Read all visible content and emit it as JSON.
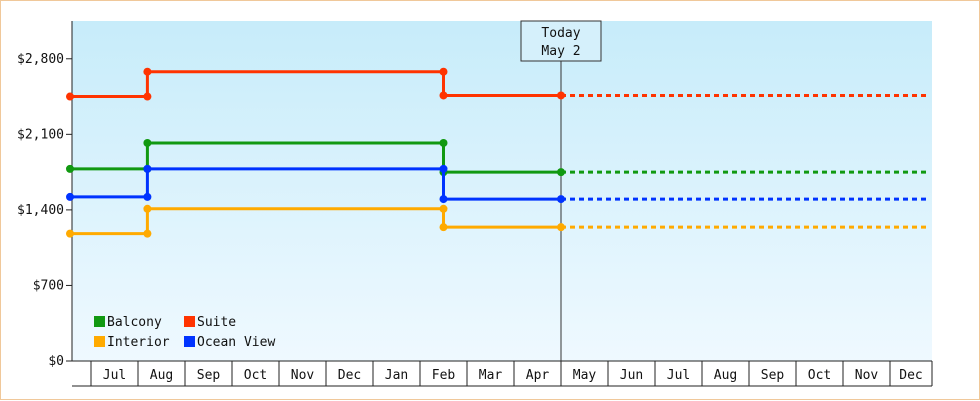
{
  "chart_data": {
    "type": "line",
    "step": true,
    "title": "",
    "xlabel": "",
    "ylabel": "",
    "ylim": [
      0,
      3150
    ],
    "yticks": [
      0,
      700,
      1400,
      2100,
      2800
    ],
    "ytick_labels": [
      "$0",
      "$700",
      "$1,400",
      "$2,100",
      "$2,800"
    ],
    "month_labels": [
      "Jul",
      "Aug",
      "Sep",
      "Oct",
      "Nov",
      "Dec",
      "Jan",
      "Feb",
      "Mar",
      "Apr",
      "May",
      "Jun",
      "Jul",
      "Aug",
      "Sep",
      "Oct",
      "Nov",
      "Dec"
    ],
    "x_unit": "month index (0 = start of Jul)",
    "today": {
      "x": 10.0,
      "label_line1": "Today",
      "label_line2": "May 2"
    },
    "grid": false,
    "legend_position": "bottom-left",
    "series": [
      {
        "name": "Balcony",
        "color": "#119911",
        "points": [
          [
            -0.5,
            1780
          ],
          [
            1.2,
            1780
          ],
          [
            1.2,
            2020
          ],
          [
            7.5,
            2020
          ],
          [
            7.5,
            1750
          ],
          [
            10.0,
            1750
          ]
        ],
        "forecast": [
          [
            10.0,
            1750
          ],
          [
            18.0,
            1750
          ]
        ]
      },
      {
        "name": "Suite",
        "color": "#ff3300",
        "points": [
          [
            -0.5,
            2450
          ],
          [
            1.2,
            2450
          ],
          [
            1.2,
            2680
          ],
          [
            7.5,
            2680
          ],
          [
            7.5,
            2460
          ],
          [
            10.0,
            2460
          ]
        ],
        "forecast": [
          [
            10.0,
            2460
          ],
          [
            18.0,
            2460
          ]
        ]
      },
      {
        "name": "Interior",
        "color": "#ffaa00",
        "points": [
          [
            -0.5,
            1180
          ],
          [
            1.2,
            1180
          ],
          [
            1.2,
            1410
          ],
          [
            7.5,
            1410
          ],
          [
            7.5,
            1240
          ],
          [
            10.0,
            1240
          ]
        ],
        "forecast": [
          [
            10.0,
            1240
          ],
          [
            18.0,
            1240
          ]
        ]
      },
      {
        "name": "Ocean View",
        "color": "#0033ff",
        "points": [
          [
            -0.5,
            1520
          ],
          [
            1.2,
            1520
          ],
          [
            1.2,
            1780
          ],
          [
            7.5,
            1780
          ],
          [
            7.5,
            1500
          ],
          [
            10.0,
            1500
          ]
        ],
        "forecast": [
          [
            10.0,
            1500
          ],
          [
            18.0,
            1500
          ]
        ]
      }
    ]
  }
}
